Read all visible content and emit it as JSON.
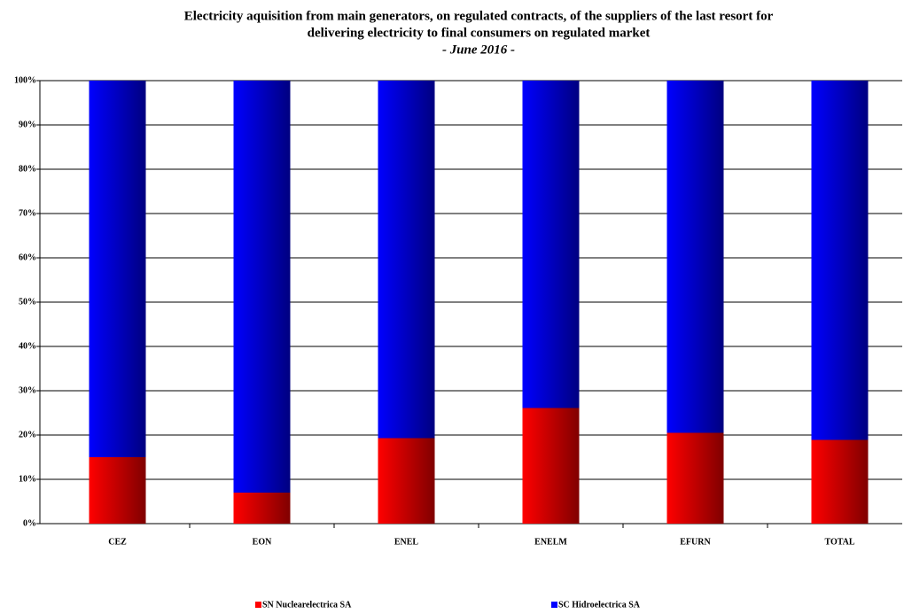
{
  "chart_data": {
    "type": "stacked_bar",
    "title": "Electricity aquisition from main generators, on regulated contracts, of the suppliers of the last resort for",
    "title_line2": "delivering electricity to final consumers on regulated market",
    "subtitle": "- June 2016 -",
    "categories": [
      "CEZ",
      "EON",
      "ENEL",
      "ENELM",
      "EFURN",
      "TOTAL"
    ],
    "series": [
      {
        "name": "SN Nuclearelectrica SA",
        "color": "#ff0000",
        "values": [
          15,
          7,
          19.3,
          26.1,
          20.5,
          18.9
        ]
      },
      {
        "name": "SC Hidroelectrica SA",
        "color": "#0000ff",
        "values": [
          85,
          93,
          80.7,
          73.9,
          79.5,
          81.1
        ]
      }
    ],
    "ylim": [
      0,
      100
    ],
    "yticks": [
      {
        "value": 0,
        "label": "0%"
      },
      {
        "value": 10,
        "label": "10%"
      },
      {
        "value": 20,
        "label": "20%"
      },
      {
        "value": 30,
        "label": "30%"
      },
      {
        "value": 40,
        "label": "40%"
      },
      {
        "value": 50,
        "label": "50%"
      },
      {
        "value": 60,
        "label": "60%"
      },
      {
        "value": 70,
        "label": "70%"
      },
      {
        "value": 80,
        "label": "80%"
      },
      {
        "value": 90,
        "label": "90%"
      },
      {
        "value": 100,
        "label": "100%"
      }
    ],
    "grid": true
  }
}
